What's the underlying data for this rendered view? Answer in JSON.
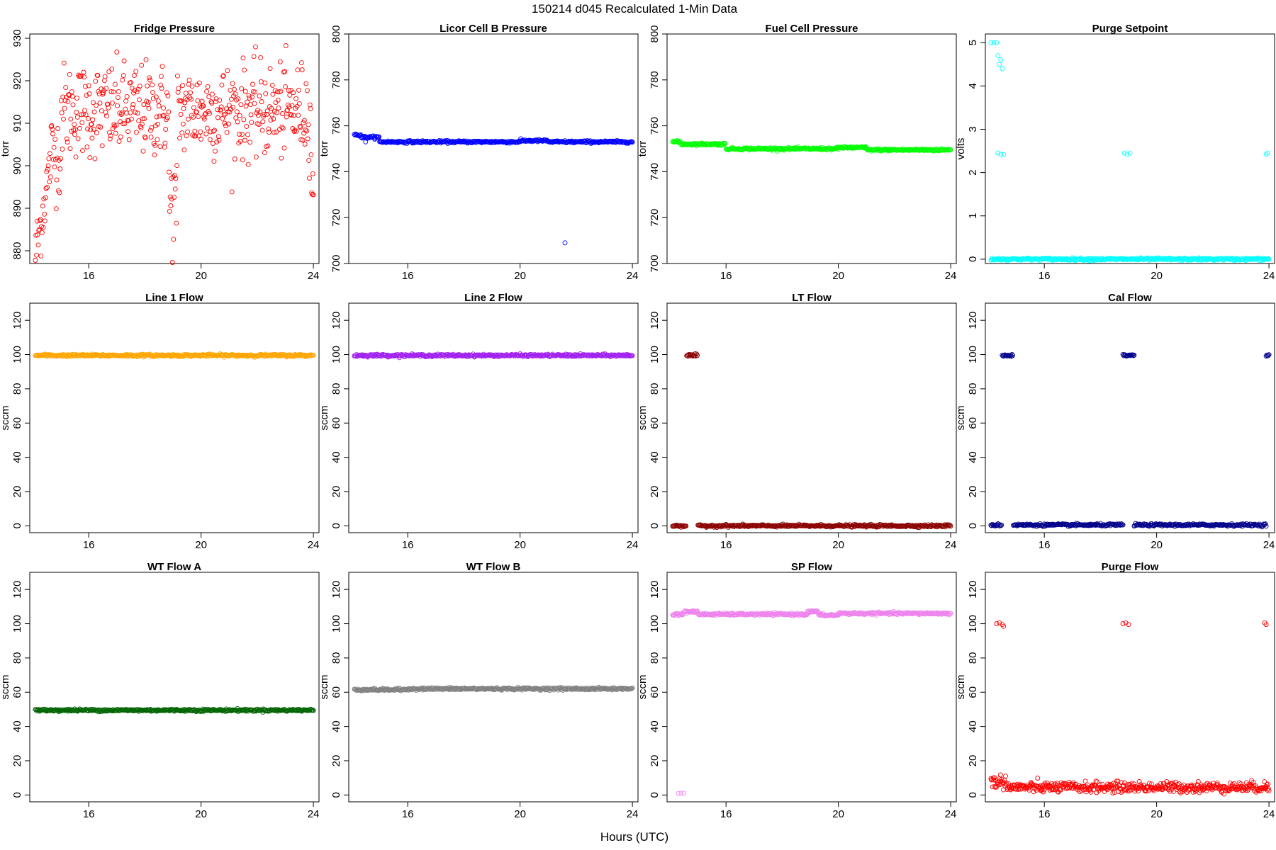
{
  "figure": {
    "title": "150214   d045   Recalculated 1-Min Data",
    "x_axis_label": "Hours (UTC)"
  },
  "chart_data": [
    {
      "type": "scatter",
      "title": "Fridge Pressure",
      "ylabel": "torr",
      "xlim": [
        13.9,
        24.2
      ],
      "ylim": [
        877,
        931
      ],
      "yticks": [
        880,
        890,
        900,
        910,
        920,
        930
      ],
      "xticks": [
        16,
        20,
        24
      ],
      "color": "#ff0000",
      "marker": "open-circle",
      "pattern": "fridge",
      "y_range_observed": [
        877,
        931
      ]
    },
    {
      "type": "scatter",
      "title": "Licor Cell B Pressure",
      "ylabel": "torr",
      "xlim": [
        13.9,
        24.2
      ],
      "ylim": [
        700,
        800
      ],
      "yticks": [
        700,
        720,
        740,
        760,
        780,
        800
      ],
      "xticks": [
        16,
        20,
        24
      ],
      "color": "#0000ff",
      "marker": "open-circle",
      "segments": [
        [
          14.1,
          14.35,
          756
        ],
        [
          14.35,
          15,
          755
        ],
        [
          15,
          18,
          753
        ],
        [
          18,
          20,
          753
        ],
        [
          20,
          21,
          753.5
        ],
        [
          21,
          24,
          753
        ]
      ],
      "outliers": [
        [
          21.6,
          709
        ],
        [
          14.5,
          753
        ]
      ]
    },
    {
      "type": "scatter",
      "title": "Fuel Cell Pressure",
      "ylabel": "torr",
      "xlim": [
        13.9,
        24.2
      ],
      "ylim": [
        700,
        800
      ],
      "yticks": [
        700,
        720,
        740,
        760,
        780,
        800
      ],
      "xticks": [
        16,
        20,
        24
      ],
      "color": "#00ff00",
      "marker": "open-circle",
      "segments": [
        [
          14.1,
          14.4,
          753
        ],
        [
          14.4,
          16,
          752
        ],
        [
          16,
          18,
          750
        ],
        [
          18,
          20,
          750
        ],
        [
          20,
          21,
          750.5
        ],
        [
          21,
          24,
          749.5
        ]
      ],
      "outliers": []
    },
    {
      "type": "scatter",
      "title": "Purge Setpoint",
      "ylabel": "volts",
      "xlim": [
        13.9,
        24.2
      ],
      "ylim": [
        -0.1,
        5.2
      ],
      "yticks": [
        0,
        1,
        2,
        3,
        4,
        5
      ],
      "xticks": [
        16,
        20,
        24
      ],
      "color": "#00ffff",
      "marker": "open-circle",
      "segments": [
        [
          14.1,
          24.0,
          0
        ]
      ],
      "outliers": [
        [
          14.1,
          5
        ],
        [
          14.2,
          5
        ],
        [
          14.3,
          5
        ],
        [
          14.35,
          4.7
        ],
        [
          14.45,
          4.6
        ],
        [
          14.4,
          4.5
        ],
        [
          14.5,
          4.4
        ],
        [
          14.35,
          2.45
        ],
        [
          14.45,
          2.42
        ],
        [
          14.55,
          2.42
        ],
        [
          18.85,
          2.45
        ],
        [
          18.95,
          2.42
        ],
        [
          19.05,
          2.45
        ],
        [
          23.9,
          2.42
        ],
        [
          23.95,
          2.45
        ]
      ]
    },
    {
      "type": "scatter",
      "title": "Line 1 Flow",
      "ylabel": "sccm",
      "xlim": [
        13.9,
        24.2
      ],
      "ylim": [
        -4,
        130
      ],
      "yticks": [
        0,
        20,
        40,
        60,
        80,
        100,
        120
      ],
      "xticks": [
        16,
        20,
        24
      ],
      "color": "#ffa500",
      "marker": "open-circle",
      "segments": [
        [
          14.1,
          24.0,
          99.5
        ]
      ],
      "outliers": []
    },
    {
      "type": "scatter",
      "title": "Line 2 Flow",
      "ylabel": "sccm",
      "xlim": [
        13.9,
        24.2
      ],
      "ylim": [
        -4,
        130
      ],
      "yticks": [
        0,
        20,
        40,
        60,
        80,
        100,
        120
      ],
      "xticks": [
        16,
        20,
        24
      ],
      "color": "#a020f0",
      "marker": "open-circle",
      "segments": [
        [
          14.1,
          24.0,
          99.5
        ]
      ],
      "outliers": []
    },
    {
      "type": "scatter",
      "title": "LT Flow",
      "ylabel": "sccm",
      "xlim": [
        13.9,
        24.2
      ],
      "ylim": [
        -4,
        130
      ],
      "yticks": [
        0,
        20,
        40,
        60,
        80,
        100,
        120
      ],
      "xticks": [
        16,
        20,
        24
      ],
      "color": "#8b0000",
      "marker": "open-circle",
      "segments": [
        [
          14.1,
          14.6,
          0
        ],
        [
          14.6,
          15.0,
          99.5
        ],
        [
          15.0,
          24.0,
          0
        ]
      ],
      "outliers": []
    },
    {
      "type": "scatter",
      "title": "Cal Flow",
      "ylabel": "sccm",
      "xlim": [
        13.9,
        24.2
      ],
      "ylim": [
        -4,
        130
      ],
      "yticks": [
        0,
        20,
        40,
        60,
        80,
        100,
        120
      ],
      "xticks": [
        16,
        20,
        24
      ],
      "color": "#00008b",
      "marker": "open-circle",
      "segments": [
        [
          14.1,
          14.5,
          0.5
        ],
        [
          14.5,
          14.9,
          99.5
        ],
        [
          14.9,
          18.8,
          0.5
        ],
        [
          18.8,
          19.2,
          99.5
        ],
        [
          19.2,
          23.9,
          0.5
        ],
        [
          23.9,
          24.0,
          99.5
        ]
      ],
      "outliers": []
    },
    {
      "type": "scatter",
      "title": "WT Flow A",
      "ylabel": "sccm",
      "xlim": [
        13.9,
        24.2
      ],
      "ylim": [
        -4,
        130
      ],
      "yticks": [
        0,
        20,
        40,
        60,
        80,
        100,
        120
      ],
      "xticks": [
        16,
        20,
        24
      ],
      "color": "#006400",
      "marker": "open-circle",
      "segments": [
        [
          14.1,
          24.0,
          49.5
        ]
      ],
      "outliers": []
    },
    {
      "type": "scatter",
      "title": "WT Flow B",
      "ylabel": "sccm",
      "xlim": [
        13.9,
        24.2
      ],
      "ylim": [
        -4,
        130
      ],
      "yticks": [
        0,
        20,
        40,
        60,
        80,
        100,
        120
      ],
      "xticks": [
        16,
        20,
        24
      ],
      "color": "#808080",
      "marker": "open-circle",
      "segments": [
        [
          14.1,
          16,
          61.5
        ],
        [
          16,
          24.0,
          62
        ]
      ],
      "outliers": []
    },
    {
      "type": "scatter",
      "title": "SP Flow",
      "ylabel": "sccm",
      "xlim": [
        13.9,
        24.2
      ],
      "ylim": [
        -4,
        130
      ],
      "yticks": [
        0,
        20,
        40,
        60,
        80,
        100,
        120
      ],
      "xticks": [
        16,
        20,
        24
      ],
      "color": "#ee82ee",
      "marker": "open-circle",
      "segments": [
        [
          14.1,
          14.5,
          105.5
        ],
        [
          14.5,
          15.0,
          107
        ],
        [
          15.0,
          18.9,
          105.5
        ],
        [
          18.9,
          19.3,
          107
        ],
        [
          19.3,
          20.0,
          105
        ],
        [
          20.0,
          24.0,
          106
        ]
      ],
      "outliers": [
        [
          14.3,
          1
        ],
        [
          14.4,
          1
        ],
        [
          14.5,
          1
        ]
      ]
    },
    {
      "type": "scatter",
      "title": "Purge Flow",
      "ylabel": "sccm",
      "xlim": [
        13.9,
        24.2
      ],
      "ylim": [
        -4,
        130
      ],
      "yticks": [
        0,
        20,
        40,
        60,
        80,
        100,
        120
      ],
      "xticks": [
        16,
        20,
        24
      ],
      "color": "#ff0000",
      "marker": "open-circle",
      "pattern": "purgeflow",
      "segments": [
        [
          14.1,
          24.0,
          4.5
        ]
      ],
      "outliers": [
        [
          14.3,
          100
        ],
        [
          14.4,
          100.5
        ],
        [
          14.5,
          99.5
        ],
        [
          14.55,
          98.5
        ],
        [
          18.8,
          100
        ],
        [
          18.9,
          100.5
        ],
        [
          19.0,
          99.5
        ],
        [
          23.85,
          100.5
        ],
        [
          23.9,
          99.5
        ]
      ]
    }
  ]
}
